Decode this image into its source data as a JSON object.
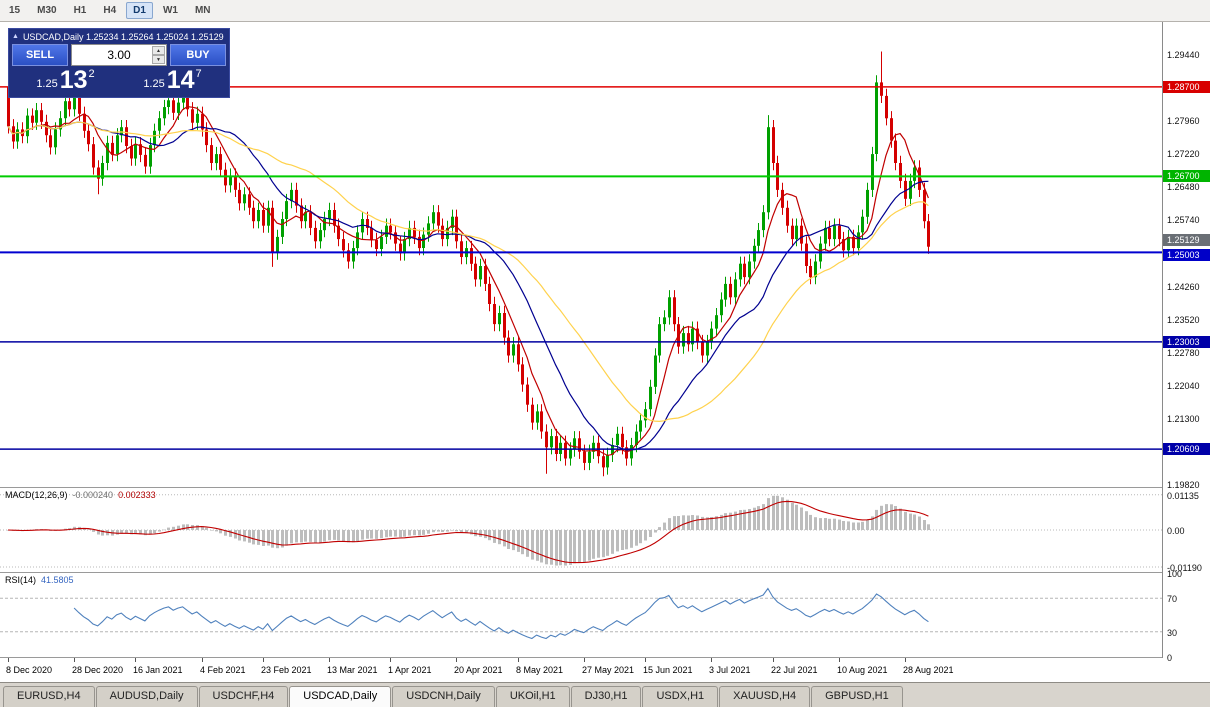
{
  "toolbar": {
    "items": [
      "15",
      "M30",
      "H1",
      "H4",
      "D1",
      "W1",
      "MN"
    ],
    "active": "D1"
  },
  "icons": {
    "collapse": "▲",
    "spin_up": "▲",
    "spin_down": "▼"
  },
  "symbol_header": {
    "text": "USDCAD,Daily 1.25234 1.25264 1.25024 1.25129"
  },
  "trade_widget": {
    "sell_label": "SELL",
    "buy_label": "BUY",
    "lot_size": "3.00",
    "sell_price": {
      "prefix": "1.25",
      "big": "13",
      "sup": "2"
    },
    "buy_price": {
      "prefix": "1.25",
      "big": "14",
      "sup": "7"
    }
  },
  "price_axis": {
    "scale_labels": [
      "1.29440",
      "1.27960",
      "1.27220",
      "1.26480",
      "1.25740",
      "1.24260",
      "1.23520",
      "1.22780",
      "1.22040",
      "1.21300",
      "1.19820"
    ],
    "tags": [
      {
        "label": "1.28700",
        "price": 1.287,
        "color": "#d80000"
      },
      {
        "label": "1.26700",
        "price": 1.267,
        "color": "#00b400"
      },
      {
        "label": "1.25129",
        "price": 1.25129,
        "color": "#6a6f75",
        "dy": -7
      },
      {
        "label": "1.25003",
        "price": 1.25003,
        "color": "#0000c8",
        "dy": 3
      },
      {
        "label": "1.23003",
        "price": 1.23003,
        "color": "#0000a8"
      },
      {
        "label": "1.20609",
        "price": 1.20609,
        "color": "#0000a8"
      }
    ]
  },
  "macd_panel": {
    "title": "MACD(12,26,9)",
    "value_main": "-0.000240",
    "value_signal": "0.002333",
    "axis_labels": [
      {
        "v": 0.01135,
        "label": "0.01135"
      },
      {
        "v": 0,
        "label": "0.00"
      },
      {
        "v": -0.0119,
        "label": "-0.01190"
      }
    ]
  },
  "rsi_panel": {
    "title": "RSI(14)",
    "value": "41.5805",
    "axis_labels": [
      {
        "v": 100,
        "label": "100"
      },
      {
        "v": 70,
        "label": "70"
      },
      {
        "v": 30,
        "label": "30"
      },
      {
        "v": 0,
        "label": "0"
      }
    ],
    "levels": [
      70,
      30
    ]
  },
  "tabs": {
    "items": [
      "EURUSD,H4",
      "AUDUSD,Daily",
      "USDCHF,H4",
      "USDCAD,Daily",
      "USDCNH,Daily",
      "UKOil,H1",
      "DJ30,H1",
      "USDX,H1",
      "XAUUSD,H4",
      "GBPUSD,H1"
    ],
    "active": "USDCAD,Daily"
  },
  "chart_data": {
    "type": "candlestick",
    "symbol": "USDCAD",
    "timeframe": "Daily",
    "ohlc_header": {
      "open": 1.25234,
      "high": 1.25264,
      "low": 1.25024,
      "close": 1.25129
    },
    "x_ticks": {
      "indices": [
        0,
        14,
        27,
        41,
        54,
        68,
        81,
        95,
        108,
        122,
        135,
        149,
        162,
        176,
        190
      ],
      "labels": [
        "8 Dec 2020",
        "28 Dec 2020",
        "16 Jan 2021",
        "4 Feb 2021",
        "23 Feb 2021",
        "13 Mar 2021",
        "1 Apr 2021",
        "20 Apr 2021",
        "8 May 2021",
        "27 May 2021",
        "15 Jun 2021",
        "3 Jul 2021",
        "22 Jul 2021",
        "10 Aug 2021",
        "28 Aug 2021"
      ]
    },
    "first_open": 1.287,
    "default_wick": 0.0016,
    "closes": [
      1.2782,
      1.2748,
      1.2775,
      1.276,
      1.2806,
      1.279,
      1.2818,
      1.2792,
      1.2762,
      1.2735,
      1.2775,
      1.28,
      1.2838,
      1.282,
      1.2848,
      1.281,
      1.2772,
      1.2742,
      1.269,
      1.2665,
      1.27,
      1.2745,
      1.272,
      1.2762,
      1.278,
      1.2738,
      1.271,
      1.2742,
      1.2718,
      1.2692,
      1.274,
      1.2772,
      1.28,
      1.2825,
      1.284,
      1.2812,
      1.2835,
      1.285,
      1.282,
      1.279,
      1.281,
      1.2775,
      1.274,
      1.27,
      1.272,
      1.2685,
      1.265,
      1.2672,
      1.264,
      1.261,
      1.263,
      1.26,
      1.257,
      1.2595,
      1.256,
      1.26,
      1.25,
      1.2535,
      1.2575,
      1.2615,
      1.264,
      1.2605,
      1.257,
      1.259,
      1.2555,
      1.2525,
      1.255,
      1.2575,
      1.2595,
      1.256,
      1.253,
      1.2505,
      1.248,
      1.251,
      1.2545,
      1.2575,
      1.2555,
      1.2528,
      1.2508,
      1.2535,
      1.256,
      1.2545,
      1.252,
      1.2498,
      1.253,
      1.2555,
      1.2535,
      1.251,
      1.254,
      1.2565,
      1.259,
      1.256,
      1.253,
      1.2555,
      1.258,
      1.2525,
      1.249,
      1.251,
      1.2475,
      1.244,
      1.247,
      1.243,
      1.2385,
      1.234,
      1.2365,
      1.231,
      1.227,
      1.2295,
      1.225,
      1.2205,
      1.216,
      1.212,
      1.2145,
      1.21,
      1.2065,
      1.209,
      1.205,
      1.2075,
      1.204,
      1.206,
      1.2085,
      1.2055,
      1.203,
      1.2055,
      1.2075,
      1.2045,
      1.202,
      1.2048,
      1.207,
      1.2095,
      1.2065,
      1.204,
      1.207,
      1.21,
      1.2125,
      1.215,
      1.22,
      1.227,
      1.234,
      1.2355,
      1.24,
      1.234,
      1.229,
      1.232,
      1.2295,
      1.233,
      1.23,
      1.227,
      1.23,
      1.233,
      1.236,
      1.2395,
      1.243,
      1.24,
      1.244,
      1.2475,
      1.2445,
      1.248,
      1.2515,
      1.255,
      1.259,
      1.278,
      1.27,
      1.264,
      1.26,
      1.256,
      1.253,
      1.256,
      1.252,
      1.247,
      1.2445,
      1.248,
      1.252,
      1.2555,
      1.253,
      1.256,
      1.253,
      1.2505,
      1.2535,
      1.251,
      1.2545,
      1.258,
      1.264,
      1.272,
      1.288,
      1.285,
      1.28,
      1.275,
      1.27,
      1.266,
      1.262,
      1.266,
      1.269,
      1.264,
      1.257,
      1.2513
    ],
    "wick_overrides": [
      {
        "i": 0,
        "high": 1.288
      },
      {
        "i": 19,
        "low": 1.263
      },
      {
        "i": 56,
        "low": 1.2468
      },
      {
        "i": 114,
        "low": 1.2006
      },
      {
        "i": 126,
        "low": 1.2
      },
      {
        "i": 161,
        "high": 1.2807
      },
      {
        "i": 185,
        "high": 1.2949
      }
    ],
    "price_range": {
      "top": 1.3015,
      "bottom": 1.19762
    },
    "h_lines": [
      {
        "price": 1.287,
        "color": "#e00000",
        "w": 1.5
      },
      {
        "price": 1.267,
        "color": "#00cc00",
        "w": 2
      },
      {
        "price": 1.25003,
        "color": "#0000d0",
        "w": 2
      },
      {
        "price": 1.23003,
        "color": "#0000a0",
        "w": 1.5
      },
      {
        "price": 1.20609,
        "color": "#0000a0",
        "w": 1.5
      }
    ],
    "mas": [
      {
        "period": 7,
        "color": "#c00000"
      },
      {
        "period": 18,
        "color": "#000090"
      },
      {
        "period": 34,
        "color": "#ffd24d"
      }
    ],
    "candle_colors": {
      "up": "#00a000",
      "down": "#d40000"
    },
    "macd": {
      "fast": 12,
      "slow": 26,
      "signal": 9,
      "hist_color": "#bdbdbd",
      "signal_color": "#c00000",
      "scale_half": 0.0135
    },
    "rsi": {
      "period": 14,
      "color": "#4f81bd"
    },
    "layout": {
      "x0": 8,
      "dx": 4.72,
      "candle_w": 3
    }
  }
}
